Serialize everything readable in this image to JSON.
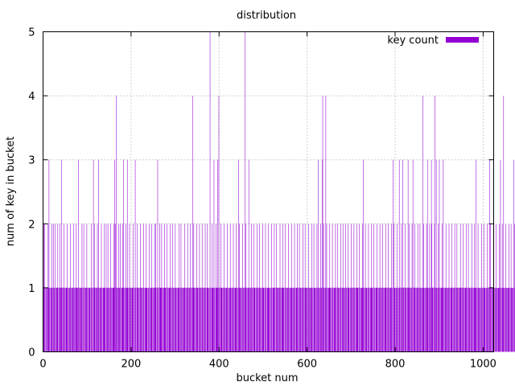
{
  "chart_data": {
    "type": "bar",
    "title": "distribution",
    "xlabel": "bucket num",
    "ylabel": "num of key in bucket",
    "xlim": [
      0,
      1024
    ],
    "ylim": [
      0,
      5
    ],
    "x_ticks": [
      0,
      200,
      400,
      600,
      800,
      1000
    ],
    "y_ticks": [
      0,
      1,
      2,
      3,
      4,
      5
    ],
    "x_tick_labels": [
      "0",
      "200",
      "400",
      "600",
      "800",
      "1000"
    ],
    "y_tick_labels": [
      "0",
      "1",
      "2",
      "3",
      "4",
      "5"
    ],
    "grid": true,
    "legend": {
      "position": "top-right",
      "entries": [
        "key count"
      ]
    },
    "series": [
      {
        "name": "key count",
        "color": "#9400d3",
        "x_start": 0,
        "values": [
          1,
          2,
          1,
          2,
          1,
          0,
          1,
          1,
          1,
          0,
          1,
          2,
          1,
          3,
          1,
          1,
          0,
          1,
          1,
          1,
          2,
          1,
          0,
          2,
          1,
          1,
          1,
          2,
          1,
          0,
          1,
          1,
          1,
          2,
          0,
          1,
          1,
          1,
          2,
          1,
          1,
          1,
          3,
          1,
          0,
          1,
          1,
          2,
          1,
          1,
          0,
          1,
          1,
          1,
          2,
          1,
          1,
          0,
          1,
          1,
          1,
          1,
          2,
          1,
          0,
          1,
          1,
          1,
          1,
          2,
          1,
          1,
          0,
          1,
          1,
          2,
          1,
          1,
          1,
          1,
          3,
          1,
          1,
          0,
          1,
          1,
          1,
          1,
          2,
          1,
          0,
          1,
          2,
          1,
          1,
          0,
          1,
          1,
          1,
          2,
          1,
          1,
          0,
          1,
          1,
          1,
          1,
          0,
          1,
          2,
          1,
          1,
          1,
          0,
          3,
          1,
          2,
          1,
          1,
          0,
          1,
          1,
          1,
          2,
          1,
          1,
          3,
          1,
          0,
          1,
          1,
          1,
          2,
          1,
          1,
          0,
          1,
          1,
          1,
          2,
          1,
          1,
          0,
          2,
          1,
          1,
          1,
          2,
          1,
          0,
          1,
          1,
          1,
          2,
          1,
          1,
          0,
          1,
          1,
          1,
          2,
          1,
          3,
          1,
          2,
          1,
          4,
          1,
          1,
          0,
          1,
          2,
          1,
          1,
          1,
          2,
          1,
          0,
          1,
          1,
          1,
          2,
          3,
          1,
          1,
          0,
          1,
          1,
          2,
          1,
          1,
          3,
          1,
          1,
          0,
          1,
          2,
          1,
          1,
          1,
          0,
          1,
          1,
          1,
          2,
          1,
          0,
          1,
          1,
          3,
          1,
          1,
          0,
          1,
          2,
          1,
          1,
          1,
          0,
          1,
          1,
          2,
          1,
          1,
          0,
          1,
          1,
          1,
          2,
          1,
          0,
          1,
          1,
          1,
          2,
          1,
          1,
          0,
          1,
          1,
          1,
          2,
          1,
          0,
          1,
          1,
          2,
          1,
          1,
          0,
          1,
          1,
          1,
          1,
          2,
          2,
          1,
          0,
          1,
          1,
          3,
          1,
          1,
          0,
          1,
          2,
          1,
          1,
          1,
          2,
          1,
          1,
          0,
          1,
          1,
          1,
          2,
          1,
          1,
          0,
          1,
          2,
          1,
          1,
          0,
          1,
          1,
          1,
          2,
          1,
          1,
          0,
          1,
          1,
          2,
          1,
          1,
          1,
          0,
          1,
          2,
          1,
          1,
          1,
          0,
          1,
          1,
          1,
          1,
          2,
          1,
          0,
          1,
          2,
          1,
          1,
          1,
          0,
          1,
          1,
          1,
          2,
          1,
          1,
          0,
          1,
          1,
          1,
          2,
          1,
          1,
          0,
          1,
          1,
          2,
          1,
          1,
          0,
          1,
          1,
          4,
          1,
          2,
          1,
          1,
          0,
          1,
          1,
          1,
          2,
          1,
          1,
          0,
          1,
          1,
          2,
          1,
          1,
          1,
          0,
          1,
          2,
          1,
          1,
          0,
          1,
          1,
          1,
          2,
          1,
          1,
          0,
          1,
          2,
          1,
          1,
          1,
          0,
          1,
          5,
          1,
          1,
          0,
          1,
          2,
          1,
          1,
          1,
          3,
          1,
          1,
          0,
          1,
          2,
          1,
          1,
          3,
          1,
          1,
          4,
          1,
          1,
          0,
          1,
          2,
          1,
          1,
          1,
          0,
          1,
          1,
          2,
          1,
          1,
          0,
          1,
          1,
          1,
          2,
          1,
          1,
          0,
          1,
          1,
          1,
          2,
          1,
          1,
          0,
          1,
          1,
          1,
          2,
          1,
          0,
          1,
          1,
          1,
          2,
          1,
          1,
          0,
          1,
          1,
          3,
          1,
          2,
          1,
          1,
          0,
          1,
          1,
          1,
          2,
          1,
          1,
          0,
          1,
          5,
          1,
          2,
          1,
          1,
          0,
          1,
          1,
          1,
          3,
          1,
          1,
          0,
          1,
          1,
          2,
          1,
          1,
          1,
          0,
          1,
          2,
          1,
          1,
          0,
          1,
          1,
          1,
          2,
          1,
          1,
          0,
          1,
          2,
          1,
          1,
          1,
          0,
          1,
          1,
          1,
          2,
          1,
          1,
          0,
          1,
          1,
          2,
          1,
          1,
          0,
          1,
          1,
          1,
          2,
          1,
          1,
          0,
          1,
          1,
          1,
          2,
          1,
          0,
          1,
          1,
          1,
          2,
          1,
          1,
          0,
          1,
          2,
          1,
          1,
          1,
          0,
          1,
          1,
          1,
          2,
          1,
          1,
          0,
          1,
          1,
          2,
          1,
          1,
          1,
          0,
          1,
          2,
          1,
          1,
          1,
          0,
          1,
          1,
          2,
          1,
          1,
          0,
          1,
          1,
          1,
          2,
          1,
          1,
          0,
          1,
          1,
          1,
          2,
          1,
          1,
          0,
          1,
          1,
          2,
          1,
          1,
          0,
          1,
          2,
          1,
          1,
          1,
          0,
          1,
          1,
          1,
          2,
          1,
          1,
          0,
          1,
          2,
          1,
          1,
          1,
          0,
          1,
          1,
          1,
          2,
          1,
          1,
          0,
          1,
          1,
          1,
          2,
          1,
          1,
          0,
          1,
          2,
          1,
          1,
          1,
          0,
          1,
          1,
          2,
          1,
          1,
          3,
          1,
          1,
          0,
          1,
          2,
          1,
          1,
          1,
          3,
          4,
          1,
          2,
          1,
          0,
          1,
          1,
          4,
          1,
          2,
          1,
          1,
          0,
          1,
          1,
          1,
          2,
          1,
          1,
          0,
          1,
          1,
          2,
          1,
          1,
          0,
          1,
          1,
          1,
          2,
          1,
          1,
          0,
          1,
          2,
          1,
          1,
          0,
          1,
          1,
          1,
          2,
          1,
          0,
          1,
          1,
          2,
          1,
          1,
          0,
          1,
          1,
          2,
          1,
          1,
          1,
          0,
          1,
          2,
          1,
          1,
          0,
          1,
          1,
          1,
          2,
          1,
          1,
          0,
          1,
          1,
          2,
          1,
          1,
          0,
          1,
          1,
          1,
          2,
          1,
          1,
          0,
          1,
          2,
          1,
          1,
          0,
          1,
          1,
          1,
          2,
          1,
          3,
          1,
          1,
          0,
          1,
          2,
          1,
          1,
          1,
          0,
          1,
          1,
          2,
          1,
          1,
          0,
          1,
          1,
          1,
          2,
          1,
          1,
          0,
          1,
          2,
          1,
          1,
          1,
          0,
          1,
          1,
          2,
          1,
          1,
          0,
          1,
          1,
          1,
          2,
          1,
          1,
          0,
          1,
          1,
          2,
          1,
          1,
          0,
          1,
          1,
          1,
          2,
          1,
          1,
          0,
          1,
          1,
          2,
          1,
          1,
          0,
          1,
          1,
          1,
          2,
          1,
          1,
          0,
          3,
          1,
          2,
          1,
          1,
          0,
          1,
          1,
          1,
          2,
          1,
          1,
          0,
          1,
          3,
          1,
          1,
          0,
          1,
          2,
          1,
          1,
          3,
          1,
          1,
          0,
          1,
          2,
          1,
          1,
          1,
          0,
          1,
          1,
          3,
          1,
          1,
          2,
          1,
          0,
          1,
          1,
          1,
          2,
          1,
          3,
          0,
          1,
          1,
          2,
          1,
          1,
          0,
          1,
          1,
          1,
          2,
          1,
          1,
          0,
          1,
          2,
          1,
          1,
          1,
          0,
          1,
          1,
          4,
          2,
          1,
          1,
          0,
          1,
          1,
          1,
          2,
          1,
          3,
          1,
          1,
          0,
          1,
          2,
          1,
          1,
          1,
          3,
          2,
          1,
          1,
          0,
          1,
          1,
          2,
          4,
          1,
          1,
          3,
          1,
          1,
          0,
          1,
          2,
          1,
          3,
          1,
          0,
          1,
          1,
          1,
          2,
          1,
          1,
          3,
          1,
          0,
          1,
          1,
          1,
          2,
          1,
          1,
          0,
          1,
          1,
          1,
          2,
          1,
          1,
          0,
          1,
          1,
          2,
          1,
          1,
          0,
          1,
          1,
          1,
          2,
          1,
          1,
          0,
          1,
          2,
          1,
          1,
          1,
          0,
          1,
          1,
          1,
          2,
          1,
          1,
          0,
          1,
          1,
          2,
          1,
          1,
          0,
          1,
          1,
          1,
          2,
          1,
          1,
          0,
          1,
          2,
          1,
          1,
          1,
          0,
          1,
          1,
          1,
          2,
          1,
          1,
          0,
          1,
          1,
          2,
          1,
          1,
          3,
          1,
          1,
          0,
          1,
          2,
          1,
          1,
          1,
          0,
          1,
          1,
          1,
          2,
          1,
          1,
          0,
          1,
          1,
          2,
          1,
          1,
          0,
          1,
          1,
          1,
          2,
          1,
          1,
          0,
          1,
          3,
          1,
          2,
          1,
          1,
          0,
          1,
          1,
          1,
          2,
          1,
          1,
          0,
          1,
          1,
          2,
          1,
          1,
          0,
          1,
          1,
          1,
          2,
          1,
          1,
          3,
          1,
          0,
          1,
          2,
          1,
          1,
          4,
          1,
          0,
          1,
          1,
          2,
          1,
          1,
          0,
          1,
          1,
          1,
          2,
          1,
          1,
          0,
          1,
          2,
          1,
          1,
          1,
          0,
          1,
          3,
          1,
          2,
          1,
          1,
          0,
          1,
          1,
          1,
          2,
          1,
          1,
          0,
          1,
          2,
          1,
          1
        ]
      }
    ]
  }
}
